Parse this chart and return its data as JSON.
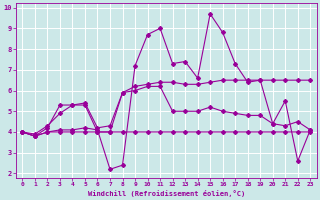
{
  "xlabel": "Windchill (Refroidissement éolien,°C)",
  "background_color": "#cce8e8",
  "grid_color": "#ffffff",
  "line_color": "#990099",
  "xlim": [
    -0.5,
    23.5
  ],
  "ylim": [
    1.8,
    10.2
  ],
  "yticks": [
    2,
    3,
    4,
    5,
    6,
    7,
    8,
    9,
    10
  ],
  "xticks": [
    0,
    1,
    2,
    3,
    4,
    5,
    6,
    7,
    8,
    9,
    10,
    11,
    12,
    13,
    14,
    15,
    16,
    17,
    18,
    19,
    20,
    21,
    22,
    23
  ],
  "series1_x": [
    0,
    1,
    2,
    3,
    4,
    5,
    6,
    7,
    8,
    9,
    10,
    11,
    12,
    13,
    14,
    15,
    16,
    17,
    18,
    19,
    20,
    21,
    22,
    23
  ],
  "series1_y": [
    4.0,
    3.8,
    4.0,
    4.0,
    4.0,
    4.0,
    4.0,
    4.0,
    4.0,
    4.0,
    4.0,
    4.0,
    4.0,
    4.0,
    4.0,
    4.0,
    4.0,
    4.0,
    4.0,
    4.0,
    4.0,
    4.0,
    4.0,
    4.0
  ],
  "series2_x": [
    0,
    1,
    2,
    3,
    4,
    5,
    6,
    7,
    8,
    9,
    10,
    11,
    12,
    13,
    14,
    15,
    16,
    17,
    18,
    19,
    20,
    21,
    22,
    23
  ],
  "series2_y": [
    4.0,
    3.8,
    4.0,
    4.1,
    4.1,
    4.2,
    4.1,
    2.2,
    2.4,
    7.2,
    8.7,
    9.0,
    7.3,
    7.4,
    6.6,
    9.7,
    8.8,
    7.3,
    6.4,
    6.5,
    4.4,
    5.5,
    2.6,
    4.1
  ],
  "series3_x": [
    0,
    1,
    2,
    3,
    4,
    5,
    6,
    7,
    8,
    9,
    10,
    11,
    12,
    13,
    14,
    15,
    16,
    17,
    18,
    19,
    20,
    21,
    22,
    23
  ],
  "series3_y": [
    4.0,
    3.8,
    4.2,
    5.3,
    5.3,
    5.3,
    4.0,
    4.0,
    5.9,
    6.0,
    6.2,
    6.2,
    5.0,
    5.0,
    5.0,
    5.2,
    5.0,
    4.9,
    4.8,
    4.8,
    4.4,
    4.3,
    4.5,
    4.1
  ],
  "series4_x": [
    0,
    1,
    2,
    3,
    4,
    5,
    6,
    7,
    8,
    9,
    10,
    11,
    12,
    13,
    14,
    15,
    16,
    17,
    18,
    19,
    20,
    21,
    22,
    23
  ],
  "series4_y": [
    4.0,
    3.9,
    4.3,
    4.9,
    5.3,
    5.4,
    4.2,
    4.3,
    5.9,
    6.2,
    6.3,
    6.4,
    6.4,
    6.3,
    6.3,
    6.4,
    6.5,
    6.5,
    6.5,
    6.5,
    6.5,
    6.5,
    6.5,
    6.5
  ]
}
